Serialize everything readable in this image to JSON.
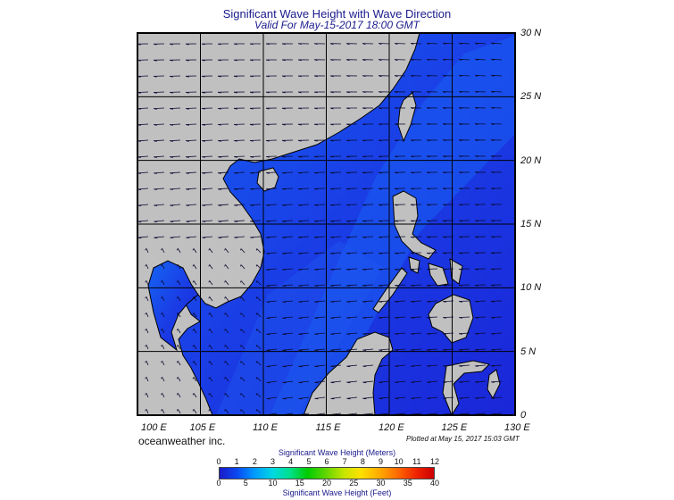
{
  "header": {
    "title": "Significant Wave Height with Wave Direction",
    "subtitle": "Valid For May-15-2017 18:00 GMT"
  },
  "map": {
    "lat_labels": [
      "30 N",
      "25 N",
      "20 N",
      "15 N",
      "10 N",
      "5 N",
      "0"
    ],
    "lon_labels": [
      "100 E",
      "105 E",
      "110 E",
      "115 E",
      "120 E",
      "125 E",
      "130 E"
    ],
    "extent": {
      "lon_min": 100,
      "lon_max": 130,
      "lat_min": 0,
      "lat_max": 30
    },
    "colors": {
      "land": "#c0c0c0",
      "sea_deep": "#1a1fd6",
      "sea_light": "#1060f0",
      "graticule": "#000000"
    }
  },
  "footer": {
    "brand": "oceanweather inc.",
    "plotted": "Plotted at May 15, 2017 15:03 GMT"
  },
  "colorbar": {
    "title_top": "Significant Wave Height (Meters)",
    "meters": [
      "0",
      "1",
      "2",
      "3",
      "4",
      "5",
      "6",
      "7",
      "8",
      "9",
      "10",
      "11",
      "12"
    ],
    "feet": [
      "0",
      "5",
      "10",
      "15",
      "20",
      "25",
      "30",
      "35",
      "40"
    ],
    "title_bottom": "Significant Wave Height (Feet)"
  }
}
